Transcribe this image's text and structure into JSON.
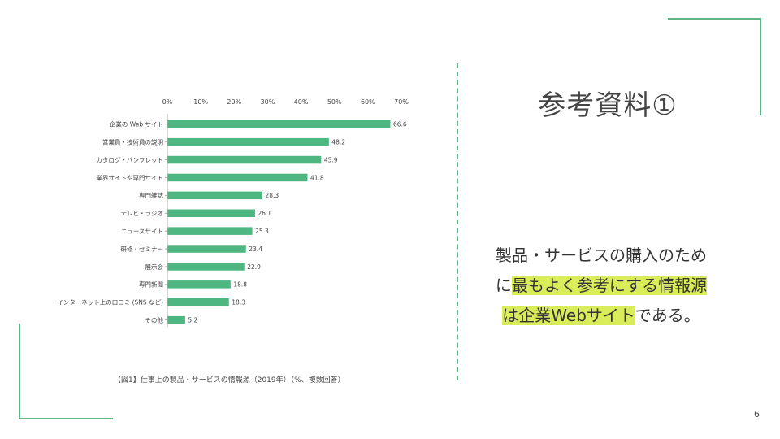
{
  "slide": {
    "title": "参考資料①",
    "page_number": "6",
    "caption": "【図1】仕事上の製品・サービスの情報源（2019年）（%、複数回答）",
    "body": {
      "line1": "製品・サービスの購入のため",
      "line2_plain": "に",
      "line2_highlight": "最もよく参考にする情報源",
      "line3_highlight": "は企業Webサイト",
      "line3_plain": "である。"
    }
  },
  "colors": {
    "accent": "#5fb584",
    "bar": "#4db681",
    "highlight": "#d9ec5a"
  },
  "chart_data": {
    "type": "bar",
    "orientation": "horizontal",
    "title": "",
    "xlabel": "",
    "ylabel": "",
    "xlim": [
      0,
      70
    ],
    "ticks": [
      0,
      10,
      20,
      30,
      40,
      50,
      60,
      70
    ],
    "tick_labels": [
      "0%",
      "10%",
      "20%",
      "30%",
      "40%",
      "50%",
      "60%",
      "70%"
    ],
    "categories": [
      "企業の Web サイト",
      "営業員・技術員の説明",
      "カタログ・パンフレット",
      "業界サイトや専門サイト",
      "専門雑誌",
      "テレビ・ラジオ",
      "ニュースサイト",
      "研修・セミナー",
      "展示会",
      "専門新聞",
      "インターネット上の口コミ (SNS など)",
      "その他"
    ],
    "values": [
      66.6,
      48.2,
      45.9,
      41.8,
      28.3,
      26.1,
      25.3,
      23.4,
      22.9,
      18.8,
      18.3,
      5.2
    ],
    "value_labels": [
      "66.6",
      "48.2",
      "45.9",
      "41.8",
      "28.3",
      "26.1",
      "25.3",
      "23.4",
      "22.9",
      "18.8",
      "18.3",
      "5.2"
    ]
  }
}
